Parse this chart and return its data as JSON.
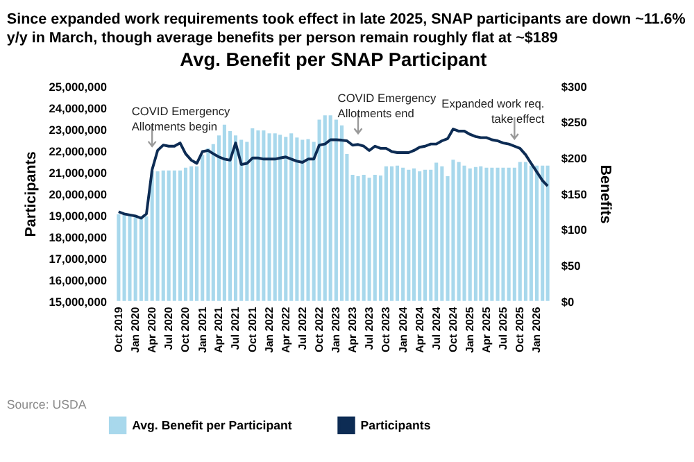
{
  "chart_data": {
    "type": "bar",
    "title": "Avg. Benefit per SNAP Participant",
    "subtitle": "Since expanded work requirements took effect in late 2025, SNAP participants are down ~11.6% y/y in March, though average benefits per person remain roughly flat at ~$189",
    "ylabel": "Participants",
    "y2label": "Benefits",
    "x": [
      "2019-10",
      "2019-11",
      "2019-12",
      "2020-01",
      "2020-02",
      "2020-03",
      "2020-04",
      "2020-05",
      "2020-06",
      "2020-07",
      "2020-08",
      "2020-09",
      "2020-10",
      "2020-11",
      "2020-12",
      "2021-01",
      "2021-02",
      "2021-03",
      "2021-04",
      "2021-05",
      "2021-06",
      "2021-07",
      "2021-08",
      "2021-09",
      "2021-10",
      "2021-11",
      "2021-12",
      "2022-01",
      "2022-02",
      "2022-03",
      "2022-04",
      "2022-05",
      "2022-06",
      "2022-07",
      "2022-08",
      "2022-09",
      "2022-10",
      "2022-11",
      "2022-12",
      "2023-01",
      "2023-02",
      "2023-03",
      "2023-04",
      "2023-05",
      "2023-06",
      "2023-07",
      "2023-08",
      "2023-09",
      "2023-10",
      "2023-11",
      "2023-12",
      "2024-01",
      "2024-02",
      "2024-03",
      "2024-04",
      "2024-05",
      "2024-06",
      "2024-07",
      "2024-08",
      "2024-09",
      "2024-10",
      "2024-11",
      "2024-12",
      "2025-01",
      "2025-02",
      "2025-03",
      "2025-04",
      "2025-05",
      "2025-06",
      "2025-07",
      "2025-08",
      "2025-09",
      "2025-10",
      "2025-11",
      "2025-12",
      "2026-01",
      "2026-02",
      "2026-03"
    ],
    "series": [
      {
        "name": "Avg. Benefit per Participant",
        "axis": "y2",
        "color": "#a8d8ec",
        "values": [
          121,
          120,
          119,
          118,
          117,
          118,
          182,
          181,
          182,
          182,
          182,
          182,
          186,
          188,
          188,
          204,
          213,
          219,
          231,
          246,
          237,
          231,
          225,
          222,
          241,
          238,
          238,
          234,
          234,
          232,
          229,
          234,
          228,
          225,
          226,
          222,
          253,
          259,
          259,
          253,
          245,
          205,
          176,
          174,
          176,
          172,
          176,
          175,
          188,
          188,
          189,
          186,
          183,
          185,
          181,
          183,
          183,
          193,
          188,
          174,
          197,
          194,
          189,
          185,
          187,
          188,
          186,
          186,
          186,
          186,
          186,
          186,
          194,
          194,
          189,
          189,
          189,
          189
        ]
      },
      {
        "name": "Participants",
        "type": "line",
        "axis": "y",
        "color": "#0d2c54",
        "values": [
          19150000,
          19050000,
          19000000,
          18950000,
          18850000,
          19050000,
          21100000,
          22000000,
          22250000,
          22200000,
          22200000,
          22350000,
          21850000,
          21550000,
          21400000,
          21950000,
          22000000,
          21850000,
          21700000,
          21600000,
          21550000,
          22350000,
          21350000,
          21400000,
          21650000,
          21650000,
          21600000,
          21600000,
          21600000,
          21650000,
          21700000,
          21600000,
          21500000,
          21450000,
          21600000,
          21600000,
          22250000,
          22300000,
          22500000,
          22500000,
          22480000,
          22450000,
          22250000,
          22280000,
          22200000,
          22000000,
          22200000,
          22100000,
          22100000,
          21950000,
          21900000,
          21900000,
          21900000,
          22000000,
          22150000,
          22200000,
          22300000,
          22300000,
          22450000,
          22550000,
          23000000,
          22900000,
          22900000,
          22750000,
          22650000,
          22600000,
          22600000,
          22500000,
          22450000,
          22350000,
          22300000,
          22200000,
          22100000,
          21800000,
          21400000,
          21000000,
          20600000,
          20350000
        ]
      }
    ],
    "xlim": [
      "2019-09-15",
      "2026-03-20"
    ],
    "xticks": [
      {
        "value": "2019-10",
        "label": "Oct 2019"
      },
      {
        "value": "2020-01",
        "label": "Jan 2020"
      },
      {
        "value": "2020-04",
        "label": "Apr 2020"
      },
      {
        "value": "2020-07",
        "label": "Jul 2020"
      },
      {
        "value": "2020-10",
        "label": "Oct 2020"
      },
      {
        "value": "2021-01",
        "label": "Jan 2021"
      },
      {
        "value": "2021-04",
        "label": "Apr 2021"
      },
      {
        "value": "2021-07",
        "label": "Jul 2021"
      },
      {
        "value": "2021-10",
        "label": "Oct 2021"
      },
      {
        "value": "2022-01",
        "label": "Jan 2022"
      },
      {
        "value": "2022-04",
        "label": "Apr 2022"
      },
      {
        "value": "2022-07",
        "label": "Jul 2022"
      },
      {
        "value": "2022-10",
        "label": "Oct 2022"
      },
      {
        "value": "2023-01",
        "label": "Jan 2023"
      },
      {
        "value": "2023-04",
        "label": "Apr 2023"
      },
      {
        "value": "2023-07",
        "label": "Jul 2023"
      },
      {
        "value": "2023-10",
        "label": "Oct 2023"
      },
      {
        "value": "2024-01",
        "label": "Jan 2024"
      },
      {
        "value": "2024-04",
        "label": "Apr 2024"
      },
      {
        "value": "2024-07",
        "label": "Jul 2024"
      },
      {
        "value": "2024-10",
        "label": "Oct 2024"
      },
      {
        "value": "2025-01",
        "label": "Jan 2025"
      },
      {
        "value": "2025-04",
        "label": "Apr 2025"
      },
      {
        "value": "2025-07",
        "label": "Jul 2025"
      },
      {
        "value": "2025-10",
        "label": "Oct 2025"
      },
      {
        "value": "2026-01",
        "label": "Jan 2026"
      }
    ],
    "ylim": [
      15000000,
      25000000
    ],
    "yticks": [
      {
        "value": 15000000,
        "label": "15,000,000"
      },
      {
        "value": 16000000,
        "label": "16,000,000"
      },
      {
        "value": 17000000,
        "label": "17,000,000"
      },
      {
        "value": 18000000,
        "label": "18,000,000"
      },
      {
        "value": 19000000,
        "label": "19,000,000"
      },
      {
        "value": 20000000,
        "label": "20,000,000"
      },
      {
        "value": 21000000,
        "label": "21,000,000"
      },
      {
        "value": 22000000,
        "label": "22,000,000"
      },
      {
        "value": 23000000,
        "label": "23,000,000"
      },
      {
        "value": 24000000,
        "label": "24,000,000"
      },
      {
        "value": 25000000,
        "label": "25,000,000"
      }
    ],
    "y2lim": [
      0,
      300
    ],
    "y2ticks": [
      {
        "value": 0,
        "label": "$0"
      },
      {
        "value": 50,
        "label": "$50"
      },
      {
        "value": 100,
        "label": "$100"
      },
      {
        "value": 150,
        "label": "$150"
      },
      {
        "value": 200,
        "label": "$200"
      },
      {
        "value": 250,
        "label": "$250"
      },
      {
        "value": 300,
        "label": "$300"
      }
    ],
    "annotations": [
      {
        "text": "COVID Emergency\nAllotments begin",
        "x": "2020-04",
        "y": 22000000
      },
      {
        "text": "COVID Emergency\nAllotments end",
        "x": "2023-05",
        "y": 22600000
      },
      {
        "text": "Expanded work req.\ntake effect",
        "x": "2025-09",
        "y": 22350000
      },
      "Source: USDA"
    ],
    "grid": false,
    "legend": "bottom"
  }
}
